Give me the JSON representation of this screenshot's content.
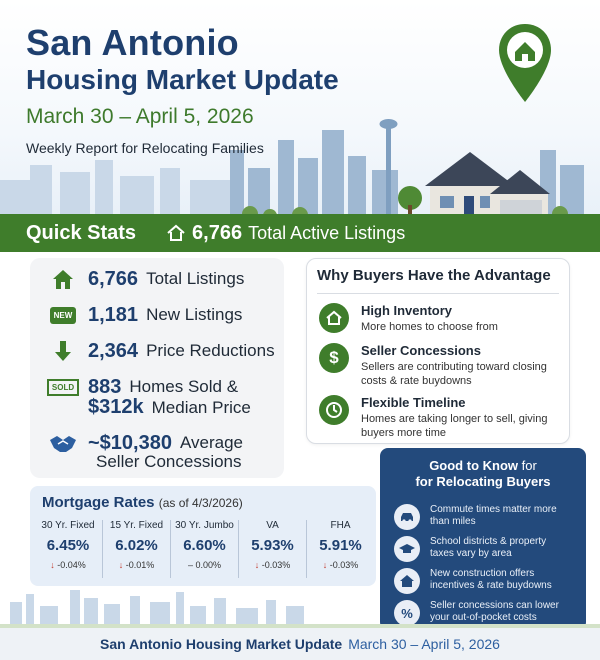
{
  "header": {
    "title_line1": "San Antonio",
    "title_line2": "Housing Market Update",
    "dates": "March 30 – April 5, 2026",
    "subtitle": "Weekly Report for Relocating Families"
  },
  "quick_stats_bar": {
    "title": "Quick Stats",
    "count": "6,766",
    "label": "Total Active Listings",
    "icon": "house-icon"
  },
  "stats": {
    "total_listings": {
      "value": "6,766",
      "label": "Total Listings",
      "icon": "house-icon"
    },
    "new_listings": {
      "value": "1,181",
      "label": "New Listings",
      "icon": "new-badge-icon",
      "badge": "NEW"
    },
    "price_reductions": {
      "value": "2,364",
      "label": "Price Reductions",
      "icon": "down-arrow-icon"
    },
    "homes_sold": {
      "value": "883",
      "label": "Homes Sold &",
      "icon": "sold-sign-icon",
      "badge": "SOLD"
    },
    "median_price": {
      "value": "$312k",
      "label": "Median Price"
    },
    "seller_concessions": {
      "value": "~$10,380",
      "label": "Average",
      "line2": "Seller Concessions",
      "icon": "handshake-icon"
    }
  },
  "advantage": {
    "title": "Why Buyers Have the Advantage",
    "items": [
      {
        "heading": "High Inventory",
        "text": "More homes to choose from",
        "icon": "house-icon"
      },
      {
        "heading": "Seller Concessions",
        "text": "Sellers are contributing toward closing costs & rate buydowns",
        "icon": "dollar-icon"
      },
      {
        "heading": "Flexible Timeline",
        "text": "Homes are taking longer to sell, giving buyers more time",
        "icon": "clock-icon"
      }
    ]
  },
  "good_to_know": {
    "title_bold": "Good to Know",
    "title_thin": "for",
    "title_line2": "for Relocating Buyers",
    "items": [
      {
        "text": "Commute times matter more than miles",
        "icon": "car-icon"
      },
      {
        "text": "School districts & property taxes vary by area",
        "icon": "graduation-cap-icon"
      },
      {
        "text": "New construction offers incentives & rate buydowns",
        "icon": "house-icon"
      },
      {
        "text": "Seller concessions can lower your out-of-pocket costs",
        "icon": "percent-icon"
      }
    ]
  },
  "mortgage": {
    "title": "Mortgage Rates",
    "as_of": "(as of 4/3/2026)",
    "rates": [
      {
        "label": "30 Yr. Fixed",
        "rate": "6.45%",
        "change": "-0.04%",
        "direction": "down"
      },
      {
        "label": "15 Yr. Fixed",
        "rate": "6.02%",
        "change": "-0.01%",
        "direction": "down"
      },
      {
        "label": "30 Yr. Jumbo",
        "rate": "6.60%",
        "change": "0.00%",
        "direction": "flat"
      },
      {
        "label": "VA",
        "rate": "5.93%",
        "change": "-0.03%",
        "direction": "down"
      },
      {
        "label": "FHA",
        "rate": "5.91%",
        "change": "-0.03%",
        "direction": "down"
      }
    ]
  },
  "footer": {
    "title": "San Antonio Housing Market Update",
    "dates": "March 30 – April 5, 2026"
  },
  "colors": {
    "navy": "#1e3f6e",
    "green": "#3f7d2b",
    "gtk_bg": "#234a7c",
    "down_red": "#c0392b"
  }
}
